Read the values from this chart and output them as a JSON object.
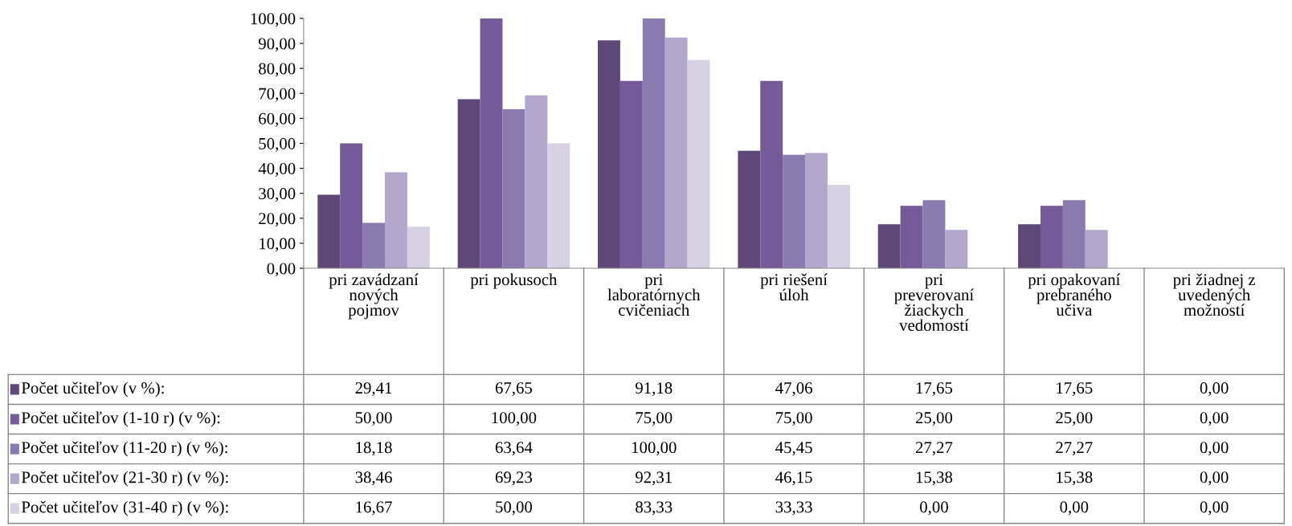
{
  "chart_data": {
    "type": "bar",
    "categories": [
      "pri zavádzaní nových pojmov",
      "pri pokusoch",
      "pri laboratórnych cvičeniach",
      "pri riešení úloh",
      "pri preverovaní žiackych vedomostí",
      "pri opakovaní prebraného učiva",
      "pri žiadnej z uvedených možností"
    ],
    "series": [
      {
        "name": "Počet učiteľov (v %):",
        "color": "#5e4878",
        "values": [
          29.41,
          67.65,
          91.18,
          47.06,
          17.65,
          17.65,
          0.0
        ],
        "value_labels": [
          "29,41",
          "67,65",
          "91,18",
          "47,06",
          "17,65",
          "17,65",
          "0,00"
        ]
      },
      {
        "name": "Počet učiteľov (1-10 r) (v %):",
        "color": "#745a98",
        "values": [
          50.0,
          100.0,
          75.0,
          75.0,
          25.0,
          25.0,
          0.0
        ],
        "value_labels": [
          "50,00",
          "100,00",
          "75,00",
          "75,00",
          "25,00",
          "25,00",
          "0,00"
        ]
      },
      {
        "name": "Počet učiteľov (11-20 r) (v %):",
        "color": "#8b7ab0",
        "values": [
          18.18,
          63.64,
          100.0,
          45.45,
          27.27,
          27.27,
          0.0
        ],
        "value_labels": [
          "18,18",
          "63,64",
          "100,00",
          "45,45",
          "27,27",
          "27,27",
          "0,00"
        ]
      },
      {
        "name": "Počet učiteľov (21-30 r) (v %):",
        "color": "#b3a7cb",
        "values": [
          38.46,
          69.23,
          92.31,
          46.15,
          15.38,
          15.38,
          0.0
        ],
        "value_labels": [
          "38,46",
          "69,23",
          "92,31",
          "46,15",
          "15,38",
          "15,38",
          "0,00"
        ]
      },
      {
        "name": "Počet učiteľov (31-40 r) (v %):",
        "color": "#d8d1e3",
        "values": [
          16.67,
          50.0,
          83.33,
          33.33,
          0.0,
          0.0,
          0.0
        ],
        "value_labels": [
          "16,67",
          "50,00",
          "83,33",
          "33,33",
          "0,00",
          "0,00",
          "0,00"
        ]
      }
    ],
    "ylim": [
      0,
      100
    ],
    "yticks": [
      {
        "value": 0,
        "label": "0,00"
      },
      {
        "value": 10,
        "label": "10,00"
      },
      {
        "value": 20,
        "label": "20,00"
      },
      {
        "value": 30,
        "label": "30,00"
      },
      {
        "value": 40,
        "label": "40,00"
      },
      {
        "value": 50,
        "label": "50,00"
      },
      {
        "value": 60,
        "label": "60,00"
      },
      {
        "value": 70,
        "label": "70,00"
      },
      {
        "value": 80,
        "label": "80,00"
      },
      {
        "value": 90,
        "label": "90,00"
      },
      {
        "value": 100,
        "label": "100,00"
      }
    ],
    "grid": false,
    "legend": "bottom left"
  }
}
